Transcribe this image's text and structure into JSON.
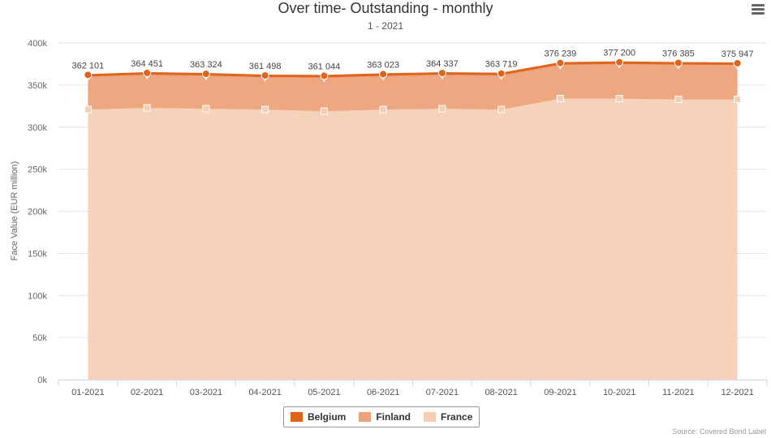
{
  "header": {
    "title": "Over time- Outstanding - monthly",
    "subtitle": "1 - 2021",
    "menu_icon": "hamburger-menu-icon"
  },
  "source": "Source: Covered Bond Label",
  "colors": {
    "Belgium": "#e0631a",
    "Finland": "#eca27a",
    "France": "#f5cdb2",
    "grid": "#e6e6e6",
    "axis": "#ccd6eb"
  },
  "chart_data": {
    "type": "area",
    "stacked": true,
    "title": "Over time- Outstanding - monthly",
    "subtitle": "1 - 2021",
    "xlabel": "",
    "ylabel": "Face Value (EUR million)",
    "ylim": [
      0,
      400000
    ],
    "yticks": [
      0,
      50000,
      100000,
      150000,
      200000,
      250000,
      300000,
      350000,
      400000
    ],
    "ytick_labels": [
      "0k",
      "50k",
      "100k",
      "150k",
      "200k",
      "250k",
      "300k",
      "350k",
      "400k"
    ],
    "categories": [
      "01-2021",
      "02-2021",
      "03-2021",
      "04-2021",
      "05-2021",
      "06-2021",
      "07-2021",
      "08-2021",
      "09-2021",
      "10-2021",
      "11-2021",
      "12-2021"
    ],
    "series": [
      {
        "name": "Belgium",
        "values": [
          2000,
          2000,
          2000,
          2000,
          2000,
          2000,
          2000,
          2000,
          2000,
          2000,
          2000,
          2000
        ]
      },
      {
        "name": "Finland",
        "values": [
          39100,
          39451,
          39324,
          38498,
          40044,
          40023,
          40337,
          40719,
          40239,
          41200,
          41385,
          40947
        ]
      },
      {
        "name": "France",
        "values": [
          321000,
          323000,
          322000,
          321000,
          319000,
          321000,
          322000,
          321000,
          334000,
          334000,
          333000,
          333000
        ]
      }
    ],
    "data_labels": [
      "362 101",
      "364 451",
      "363 324",
      "361 498",
      "361 044",
      "363 023",
      "364 337",
      "363 719",
      "376 239",
      "377 200",
      "376 385",
      "375 947"
    ],
    "legend": [
      "Belgium",
      "Finland",
      "France"
    ],
    "legend_position": "bottom-center",
    "grid": true
  }
}
